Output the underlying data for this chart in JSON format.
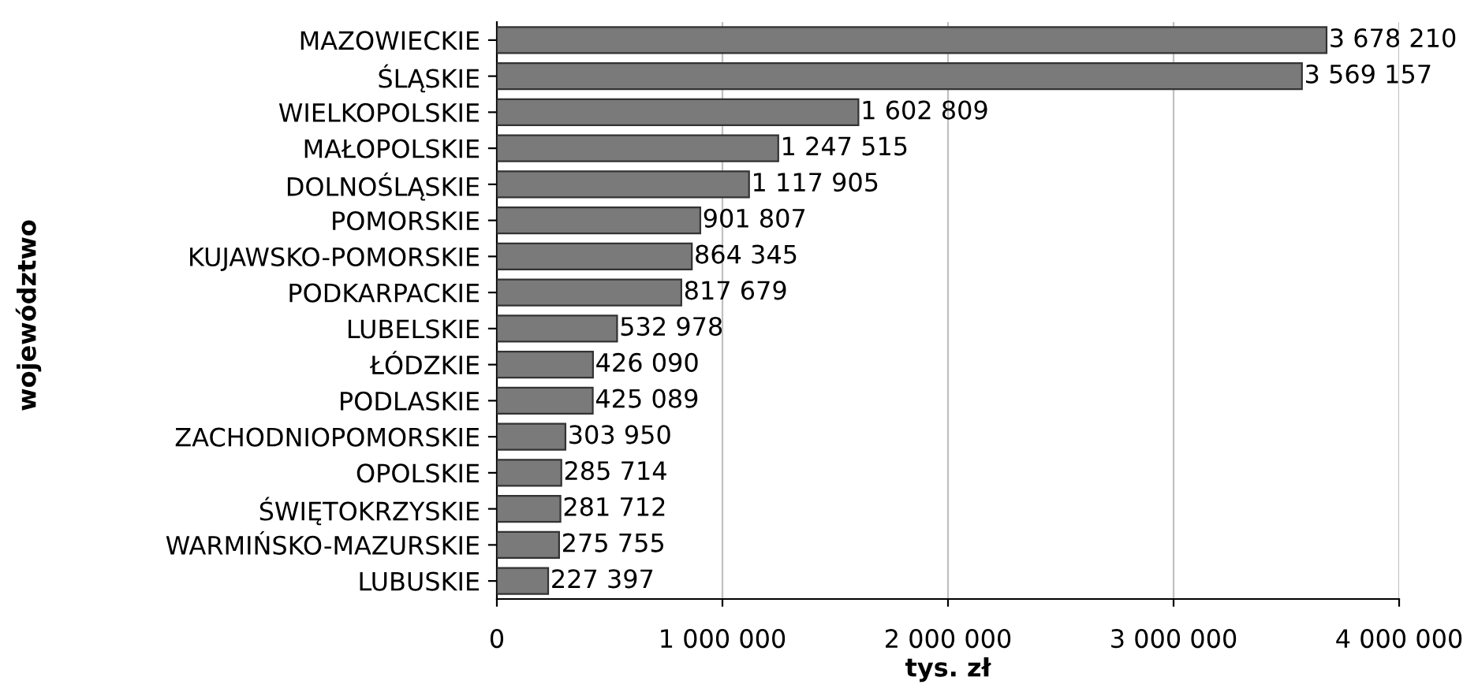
{
  "chart_data": {
    "type": "bar",
    "orientation": "horizontal",
    "xlabel": "tys. zł",
    "ylabel": "województwo",
    "categories": [
      "MAZOWIECKIE",
      "ŚLĄSKIE",
      "WIELKOPOLSKIE",
      "MAŁOPOLSKIE",
      "DOLNOŚLĄSKIE",
      "POMORSKIE",
      "KUJAWSKO-POMORSKIE",
      "PODKARPACKIE",
      "LUBELSKIE",
      "ŁÓDZKIE",
      "PODLASKIE",
      "ZACHODNIOPOMORSKIE",
      "OPOLSKIE",
      "ŚWIĘTOKRZYSKIE",
      "WARMIŃSKO-MAZURSKIE",
      "LUBUSKIE"
    ],
    "values": [
      3678210,
      3569157,
      1602809,
      1247515,
      1117905,
      901807,
      864345,
      817679,
      532978,
      426090,
      425089,
      303950,
      285714,
      281712,
      275755,
      227397
    ],
    "value_labels": [
      "3 678 210",
      "3 569 157",
      "1 602 809",
      "1 247 515",
      "1 117 905",
      "901 807",
      "864 345",
      "817 679",
      "532 978",
      "426 090",
      "425 089",
      "303 950",
      "285 714",
      "281 712",
      "275 755",
      "227 397"
    ],
    "color": "#7a7a7a",
    "xlim": [
      0,
      4000000
    ],
    "xticks": [
      {
        "value": 0,
        "label": "0"
      },
      {
        "value": 1000000,
        "label": "1 000 000"
      },
      {
        "value": 2000000,
        "label": "2 000 000"
      },
      {
        "value": 3000000,
        "label": "3 000 000"
      },
      {
        "value": 4000000,
        "label": "4 000 000"
      }
    ],
    "grid": "x",
    "legend": false
  }
}
